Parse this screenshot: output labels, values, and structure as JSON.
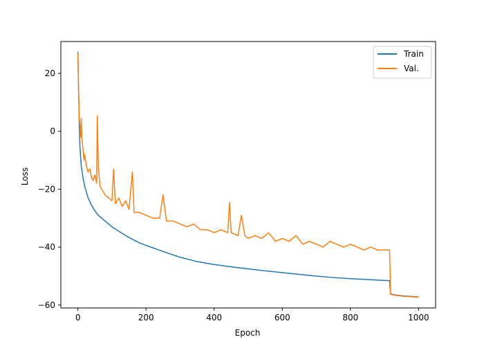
{
  "chart_data": {
    "type": "line",
    "title": "",
    "xlabel": "Epoch",
    "ylabel": "Loss",
    "xlim": [
      -50,
      1050
    ],
    "ylim": [
      -61,
      31
    ],
    "xticks": [
      0,
      200,
      400,
      600,
      800,
      1000
    ],
    "yticks": [
      -60,
      -40,
      -20,
      0,
      20
    ],
    "grid": false,
    "legend_position": "top-right",
    "series": [
      {
        "name": "Train",
        "color": "#1f77b4",
        "points": [
          [
            0,
            27.5
          ],
          [
            2,
            14
          ],
          [
            4,
            3
          ],
          [
            6,
            -5
          ],
          [
            8,
            -9
          ],
          [
            10,
            -12
          ],
          [
            15,
            -16
          ],
          [
            20,
            -19
          ],
          [
            25,
            -21
          ],
          [
            30,
            -23
          ],
          [
            40,
            -25.5
          ],
          [
            50,
            -27.5
          ],
          [
            60,
            -29
          ],
          [
            70,
            -30
          ],
          [
            80,
            -31
          ],
          [
            100,
            -33
          ],
          [
            120,
            -34.5
          ],
          [
            140,
            -36
          ],
          [
            160,
            -37.3
          ],
          [
            180,
            -38.5
          ],
          [
            200,
            -39.4
          ],
          [
            250,
            -41.5
          ],
          [
            300,
            -43.5
          ],
          [
            350,
            -45
          ],
          [
            400,
            -46
          ],
          [
            450,
            -46.8
          ],
          [
            500,
            -47.5
          ],
          [
            550,
            -48.2
          ],
          [
            600,
            -48.8
          ],
          [
            650,
            -49.4
          ],
          [
            700,
            -50
          ],
          [
            750,
            -50.5
          ],
          [
            800,
            -50.9
          ],
          [
            850,
            -51.2
          ],
          [
            900,
            -51.5
          ],
          [
            915,
            -51.6
          ],
          [
            918,
            -56.2
          ],
          [
            930,
            -56.5
          ],
          [
            950,
            -56.8
          ],
          [
            1000,
            -57.2
          ]
        ]
      },
      {
        "name": "Val.",
        "color": "#ff7f0e",
        "points": [
          [
            0,
            27
          ],
          [
            2,
            15
          ],
          [
            4,
            5
          ],
          [
            6,
            2
          ],
          [
            8,
            -2
          ],
          [
            10,
            4.5
          ],
          [
            12,
            -3
          ],
          [
            15,
            -6
          ],
          [
            18,
            -10
          ],
          [
            20,
            -8
          ],
          [
            25,
            -12
          ],
          [
            30,
            -14
          ],
          [
            35,
            -13
          ],
          [
            40,
            -16
          ],
          [
            45,
            -17
          ],
          [
            50,
            -15
          ],
          [
            55,
            -18
          ],
          [
            57,
            5.3
          ],
          [
            60,
            -12
          ],
          [
            65,
            -19
          ],
          [
            70,
            -20
          ],
          [
            80,
            -22
          ],
          [
            90,
            -23
          ],
          [
            100,
            -24
          ],
          [
            105,
            -13
          ],
          [
            110,
            -25
          ],
          [
            120,
            -23
          ],
          [
            130,
            -26
          ],
          [
            140,
            -24
          ],
          [
            150,
            -27
          ],
          [
            160,
            -14
          ],
          [
            165,
            -28
          ],
          [
            180,
            -28
          ],
          [
            200,
            -29
          ],
          [
            220,
            -30
          ],
          [
            240,
            -30
          ],
          [
            250,
            -22
          ],
          [
            260,
            -31
          ],
          [
            280,
            -31
          ],
          [
            300,
            -32
          ],
          [
            320,
            -33
          ],
          [
            340,
            -32
          ],
          [
            360,
            -34
          ],
          [
            380,
            -34
          ],
          [
            400,
            -35
          ],
          [
            420,
            -34
          ],
          [
            440,
            -35
          ],
          [
            445,
            -24.5
          ],
          [
            450,
            -35
          ],
          [
            470,
            -36
          ],
          [
            480,
            -29
          ],
          [
            490,
            -36
          ],
          [
            500,
            -37
          ],
          [
            520,
            -36
          ],
          [
            540,
            -37
          ],
          [
            560,
            -35
          ],
          [
            580,
            -38
          ],
          [
            600,
            -37
          ],
          [
            620,
            -38
          ],
          [
            640,
            -36
          ],
          [
            660,
            -39
          ],
          [
            680,
            -38
          ],
          [
            700,
            -39
          ],
          [
            720,
            -40
          ],
          [
            740,
            -38
          ],
          [
            760,
            -39
          ],
          [
            780,
            -40
          ],
          [
            800,
            -39
          ],
          [
            820,
            -40
          ],
          [
            840,
            -41
          ],
          [
            860,
            -40
          ],
          [
            880,
            -41
          ],
          [
            900,
            -41
          ],
          [
            915,
            -41
          ],
          [
            918,
            -56.3
          ],
          [
            930,
            -56.6
          ],
          [
            950,
            -56.9
          ],
          [
            1000,
            -57.3
          ]
        ]
      }
    ]
  }
}
